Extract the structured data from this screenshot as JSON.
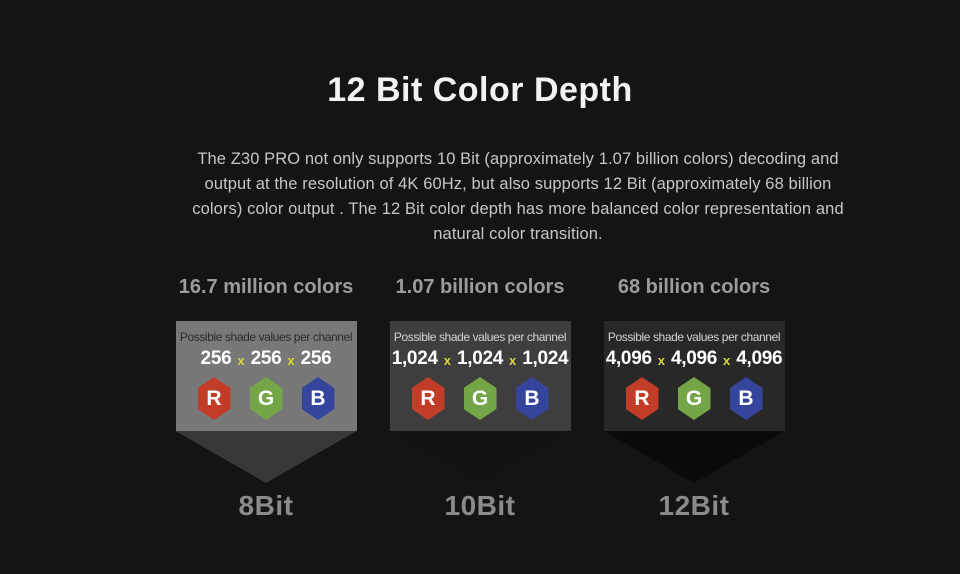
{
  "title": "12 Bit Color Depth",
  "description": "The Z30 PRO not only supports 10 Bit (approximately 1.07 billion colors) decoding and output at the resolution of 4K 60Hz, but also supports 12 Bit (approximately 68 billion colors) color output . The 12 Bit color depth has more balanced color representation and natural color transition.",
  "shade_values_label": "Possible shade values per channel",
  "multiply_symbol": "x",
  "channels": [
    {
      "letter": "R",
      "name": "red",
      "color": "#c23d27"
    },
    {
      "letter": "G",
      "name": "green",
      "color": "#74a648"
    },
    {
      "letter": "B",
      "name": "blue",
      "color": "#36459c"
    }
  ],
  "columns": [
    {
      "colors_label": "16.7 million colors",
      "values": [
        "256",
        "256",
        "256"
      ],
      "bit_label": "8Bit",
      "card_bg": "#787878",
      "card_text_color": "#2b2b2b",
      "value_text_color": "#ffffff",
      "funnel_color": "#383838"
    },
    {
      "colors_label": "1.07 billion colors",
      "values": [
        "1,024",
        "1,024",
        "1,024"
      ],
      "bit_label": "10Bit",
      "card_bg": "#3e3e3e",
      "card_text_color": "#d4d4d4",
      "value_text_color": "#ffffff",
      "funnel_color": "#121212"
    },
    {
      "colors_label": "68 billion colors",
      "values": [
        "4,096",
        "4,096",
        "4,096"
      ],
      "bit_label": "12Bit",
      "card_bg": "#282828",
      "card_text_color": "#d4d4d4",
      "value_text_color": "#ffffff",
      "funnel_color": "#0a0a0a"
    }
  ],
  "theme": {
    "background": "#141414",
    "title_color": "#f2f2f2",
    "description_color": "#c6c6c6",
    "colors_label_color": "#9c9c9c",
    "bit_label_color": "#8b8b8b",
    "multiply_color": "#d6d838"
  }
}
